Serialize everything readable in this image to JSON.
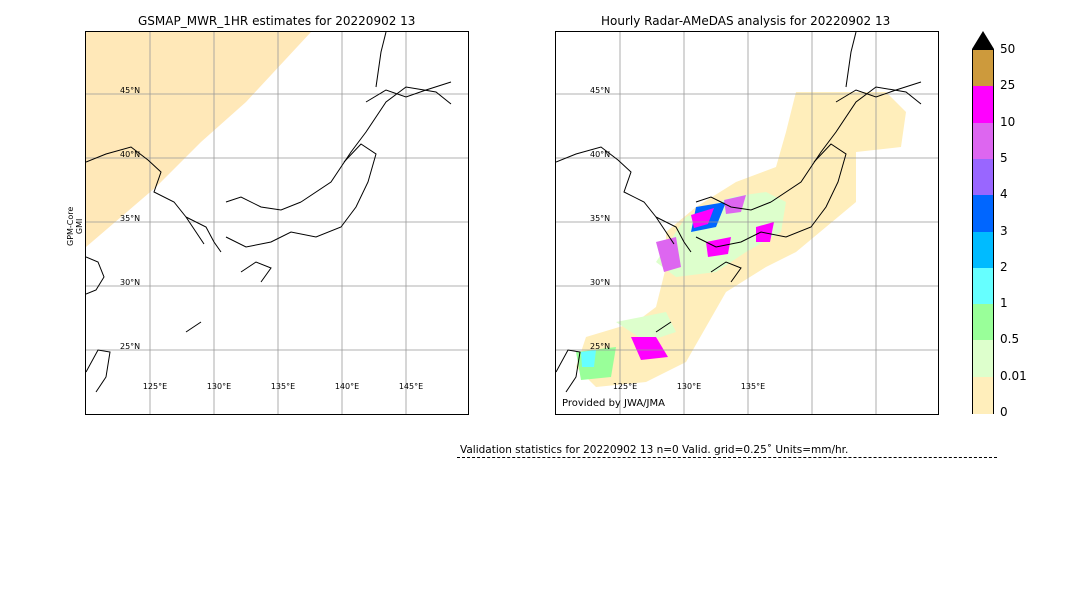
{
  "left_panel": {
    "title": "GSMAP_MWR_1HR estimates for 20220902 13",
    "ylabel_line1": "GPM-Core",
    "ylabel_line2": "GMI",
    "lat_labels": [
      "45°N",
      "40°N",
      "35°N",
      "30°N",
      "25°N"
    ],
    "lon_labels": [
      "125°E",
      "130°E",
      "135°E",
      "140°E",
      "145°E"
    ]
  },
  "right_panel": {
    "title": "Hourly Radar-AMeDAS analysis for 20220902 13",
    "lat_labels": [
      "45°N",
      "40°N",
      "35°N",
      "30°N",
      "25°N"
    ],
    "lon_labels": [
      "125°E",
      "130°E",
      "135°E"
    ],
    "credit": "Provided by JWA/JMA"
  },
  "colorbar": {
    "units": "mm/hr",
    "labels": [
      "50",
      "25",
      "10",
      "5",
      "4",
      "3",
      "2",
      "1",
      "0.5",
      "0.01",
      "0"
    ],
    "colors": [
      "#cd9a3c",
      "#ff00ff",
      "#dd66f0",
      "#9966ff",
      "#0066ff",
      "#00bbff",
      "#66ffff",
      "#99ff99",
      "#ddffcc",
      "#ffeebb"
    ],
    "overflow_color": "#000000"
  },
  "validation": {
    "text": "Validation statistics for 20220902 13  n=0 Valid. grid=0.25˚ Units=mm/hr."
  }
}
